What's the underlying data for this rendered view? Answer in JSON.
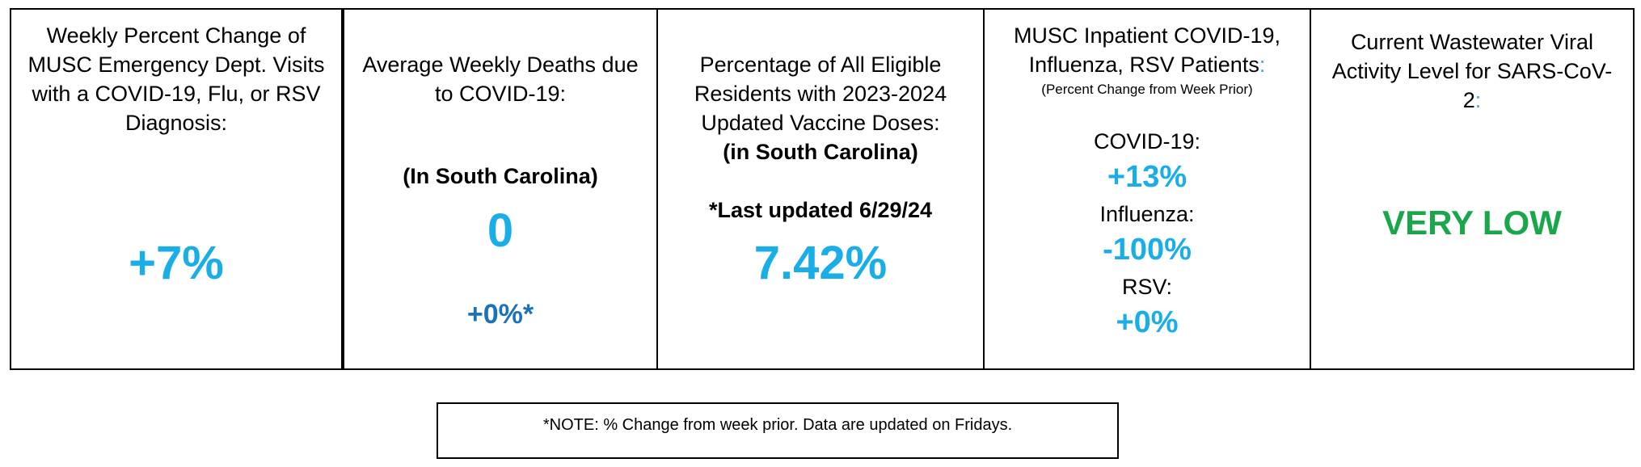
{
  "panels": {
    "ed_visits": {
      "title": "Weekly Percent Change of\nMUSC Emergency Dept. Visits\nwith a COVID-19, Flu, or RSV\nDiagnosis:",
      "value": "+7%"
    },
    "deaths": {
      "title": "Average Weekly Deaths due\nto COVID-19:",
      "region": "(In South Carolina)",
      "value": "0",
      "change": "+0%*"
    },
    "vaccine": {
      "title": "Percentage of All Eligible\nResidents with 2023-2024\nUpdated Vaccine Doses:",
      "region": "(in South Carolina)",
      "updated": "*Last updated 6/29/24",
      "value": "7.42%"
    },
    "inpatient": {
      "title": "MUSC Inpatient COVID-19,\nInfluenza, RSV Patients",
      "colon": ":",
      "note": "(Percent Change from Week Prior)",
      "items": [
        {
          "label": "COVID-19:",
          "value": "+13%"
        },
        {
          "label": "Influenza:",
          "value": "-100%"
        },
        {
          "label": "RSV:",
          "value": "+0%"
        }
      ]
    },
    "wastewater": {
      "title": "Current Wastewater Viral\nActivity Level for SARS-CoV-2",
      "colon": ":",
      "value": "VERY LOW"
    }
  },
  "footnote": "*NOTE: % Change from week prior.  Data are updated on Fridays.",
  "colors": {
    "value_blue": "#1aaee8",
    "sub_value_blue": "#1b72b8",
    "status_green": "#1aa64a"
  }
}
